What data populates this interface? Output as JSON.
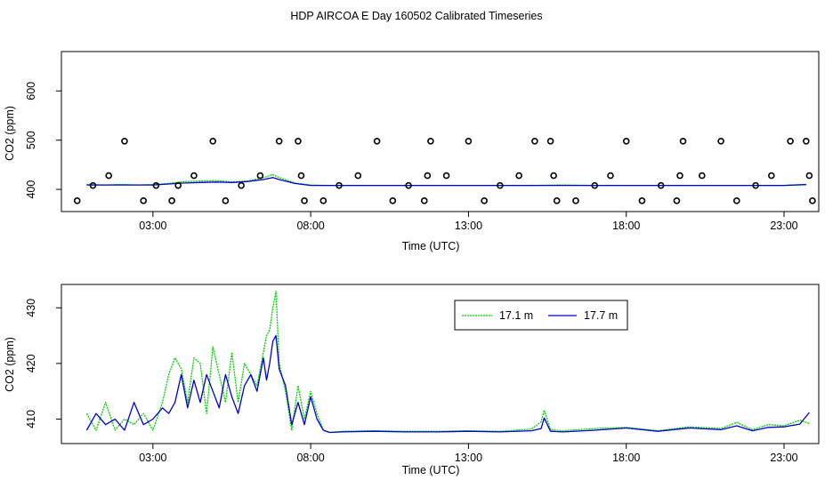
{
  "title": "HDP AIRCOA E  Day 160502  Calibrated Timeseries",
  "chart_data": [
    {
      "type": "line",
      "xlabel": "Time (UTC)",
      "ylabel": "CO2 (ppm)",
      "xlim": [
        0.1,
        24.1
      ],
      "ylim": [
        355,
        680
      ],
      "x_ticks": [
        3,
        8,
        13,
        18,
        23
      ],
      "x_tick_labels": [
        "03:00",
        "08:00",
        "13:00",
        "18:00",
        "23:00"
      ],
      "y_ticks": [
        400,
        500,
        600
      ],
      "y_tick_labels": [
        "400",
        "500",
        "600"
      ],
      "series": [
        {
          "color": "#00cc00",
          "x": [
            0.9,
            1.5,
            2.0,
            2.5,
            3.0,
            3.5,
            4.0,
            4.5,
            5.0,
            5.5,
            6.0,
            6.5,
            6.8,
            7.0,
            7.5,
            8.0,
            8.5,
            9.0,
            10.0,
            11.0,
            12.0,
            13.0,
            14.0,
            15.0,
            16.0,
            17.0,
            18.0,
            19.0,
            20.0,
            21.0,
            22.0,
            23.0,
            23.7
          ],
          "y": [
            410,
            409,
            410,
            409,
            410,
            412,
            416,
            417,
            418,
            415,
            417,
            424,
            430,
            424,
            413,
            409,
            408,
            408,
            408,
            408,
            408,
            408,
            408,
            408,
            409,
            408,
            408,
            408,
            408,
            408,
            408,
            408,
            409
          ]
        },
        {
          "color": "#0000cc",
          "x": [
            0.9,
            1.5,
            2.0,
            2.5,
            3.0,
            3.5,
            4.0,
            4.5,
            5.0,
            5.5,
            6.0,
            6.5,
            6.8,
            7.0,
            7.5,
            8.0,
            8.5,
            9.0,
            10.0,
            11.0,
            12.0,
            13.0,
            14.0,
            15.0,
            16.0,
            17.0,
            18.0,
            19.0,
            20.0,
            21.0,
            22.0,
            23.0,
            23.7
          ],
          "y": [
            409,
            409,
            409,
            409,
            409,
            411,
            413,
            414,
            415,
            414,
            416,
            420,
            424,
            420,
            412,
            408,
            408,
            408,
            408,
            408,
            408,
            408,
            408,
            408,
            408,
            408,
            408,
            408,
            408,
            408,
            408,
            408,
            410
          ]
        }
      ],
      "points": {
        "x": [
          0.6,
          1.1,
          1.6,
          2.1,
          2.7,
          3.1,
          3.6,
          3.8,
          4.3,
          4.9,
          5.3,
          5.8,
          6.4,
          7.0,
          7.6,
          7.7,
          7.8,
          8.4,
          8.9,
          9.5,
          10.1,
          10.6,
          11.1,
          11.6,
          11.7,
          11.8,
          12.3,
          13.0,
          13.5,
          14.0,
          14.6,
          15.1,
          15.6,
          15.7,
          15.8,
          16.4,
          17.0,
          17.5,
          18.0,
          18.5,
          19.1,
          19.6,
          19.7,
          19.8,
          20.4,
          21.0,
          21.5,
          22.1,
          22.6,
          23.2,
          23.7,
          23.8,
          23.9
        ],
        "y": [
          377,
          408,
          428,
          498,
          377,
          408,
          377,
          408,
          428,
          498,
          377,
          408,
          428,
          498,
          498,
          428,
          377,
          377,
          408,
          428,
          498,
          377,
          408,
          377,
          428,
          498,
          428,
          498,
          377,
          408,
          428,
          498,
          498,
          428,
          377,
          377,
          408,
          428,
          498,
          377,
          408,
          377,
          428,
          498,
          428,
          498,
          377,
          408,
          428,
          498,
          498,
          428,
          377
        ]
      }
    },
    {
      "type": "line",
      "xlabel": "Time (UTC)",
      "ylabel": "CO2 (ppm)",
      "xlim": [
        0.1,
        24.1
      ],
      "ylim": [
        405.6,
        434.2
      ],
      "x_ticks": [
        3,
        8,
        13,
        18,
        23
      ],
      "x_tick_labels": [
        "03:00",
        "08:00",
        "13:00",
        "18:00",
        "23:00"
      ],
      "y_ticks": [
        410,
        420,
        430
      ],
      "y_tick_labels": [
        "410",
        "420",
        "430"
      ],
      "legend": "top-center",
      "series": [
        {
          "name": "17.1 m",
          "color": "#00cc00",
          "x": [
            0.9,
            1.2,
            1.5,
            1.8,
            2.1,
            2.4,
            2.7,
            3.0,
            3.3,
            3.5,
            3.7,
            3.9,
            4.1,
            4.3,
            4.5,
            4.7,
            4.9,
            5.1,
            5.3,
            5.5,
            5.7,
            5.9,
            6.1,
            6.3,
            6.5,
            6.6,
            6.7,
            6.8,
            6.9,
            7.0,
            7.2,
            7.4,
            7.6,
            7.8,
            8.0,
            8.2,
            8.4,
            8.6,
            9.0,
            10.0,
            11.0,
            12.0,
            13.0,
            14.0,
            15.0,
            15.3,
            15.4,
            15.6,
            16.0,
            17.0,
            18.0,
            19.0,
            20.0,
            21.0,
            21.5,
            22.0,
            22.5,
            23.0,
            23.5,
            23.8
          ],
          "y": [
            411,
            408,
            413,
            408,
            410,
            409,
            411,
            408,
            413,
            418,
            421,
            419,
            413,
            421,
            420,
            411,
            423,
            418,
            413,
            422,
            413,
            420,
            418,
            416,
            422,
            425,
            426,
            430,
            433,
            420,
            415,
            408,
            416,
            410,
            415,
            411,
            408,
            407.6,
            407.8,
            407.9,
            407.8,
            407.8,
            407.9,
            407.8,
            408.2,
            409.5,
            411.6,
            408.1,
            407.9,
            408.3,
            408.5,
            407.9,
            408.6,
            408.3,
            409.4,
            408.1,
            409.0,
            408.8,
            409.8,
            409.2
          ]
        },
        {
          "name": "17.7 m",
          "color": "#0000cc",
          "x": [
            0.9,
            1.2,
            1.5,
            1.8,
            2.1,
            2.4,
            2.7,
            3.0,
            3.3,
            3.5,
            3.7,
            3.9,
            4.1,
            4.3,
            4.5,
            4.7,
            4.9,
            5.1,
            5.3,
            5.5,
            5.7,
            5.9,
            6.1,
            6.3,
            6.5,
            6.6,
            6.7,
            6.8,
            6.9,
            7.0,
            7.2,
            7.4,
            7.6,
            7.8,
            8.0,
            8.2,
            8.4,
            8.6,
            9.0,
            10.0,
            11.0,
            12.0,
            13.0,
            14.0,
            15.0,
            15.3,
            15.4,
            15.6,
            16.0,
            17.0,
            18.0,
            19.0,
            20.0,
            21.0,
            21.5,
            22.0,
            22.5,
            23.0,
            23.5,
            23.8
          ],
          "y": [
            408,
            411,
            409,
            410,
            408,
            413,
            409,
            410,
            412,
            411,
            413,
            418,
            412,
            417,
            413,
            418,
            415,
            412,
            418,
            414,
            411,
            416,
            418,
            415,
            421,
            417,
            420,
            424,
            425,
            419,
            416,
            409,
            413,
            409,
            414,
            410,
            408,
            407.6,
            407.7,
            407.8,
            407.7,
            407.7,
            407.8,
            407.7,
            407.9,
            408.3,
            410.2,
            407.8,
            407.7,
            408.0,
            408.4,
            407.8,
            408.4,
            408.1,
            408.8,
            407.9,
            408.5,
            408.6,
            409.1,
            411.2
          ]
        }
      ]
    }
  ]
}
